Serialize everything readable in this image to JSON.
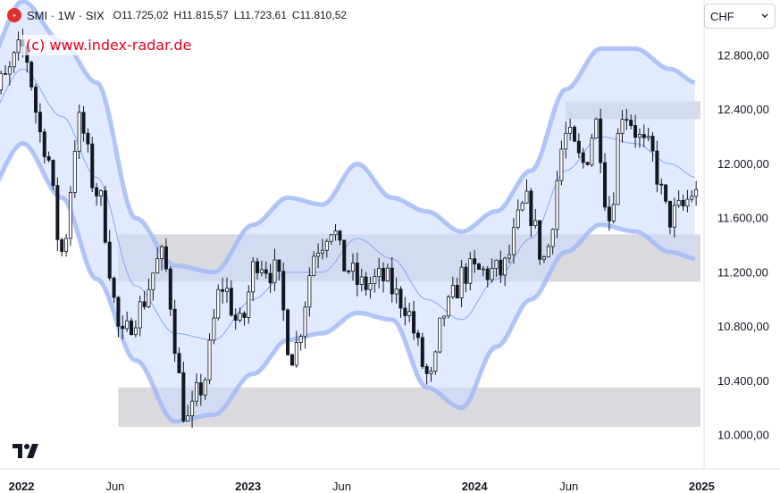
{
  "header": {
    "symbol_icon": "swiss-index-logo",
    "symbol": "SMI · 1W · SIX",
    "open_label": "O",
    "open": "11.725,02",
    "high_label": "H",
    "high": "11.815,57",
    "low_label": "L",
    "low": "11.723,61",
    "close_label": "C",
    "close": "11.810,52"
  },
  "watermark": "(c) www.index-radar.de",
  "currency": {
    "value": "CHF",
    "icon": "chevron-down-icon"
  },
  "colors": {
    "up": "#ffffff",
    "down": "#131722",
    "band_fill": "#cfdcff",
    "band_edge": "#9fb8f5",
    "band_line": "#8aa6ee",
    "zone": "#d3d4d8",
    "axis_text": "#131722"
  },
  "chart_data": {
    "type": "candlestick",
    "title": "",
    "x_ticks": [
      "2022",
      "Jun",
      "2023",
      "Jun",
      "2024",
      "Jun",
      "2025"
    ],
    "y_ticks": [
      "12.800,00",
      "12.400,00",
      "12.000,00",
      "11.600,00",
      "11.200,00",
      "10.800,00",
      "10.400,00",
      "10.000,00"
    ],
    "y_tick_values": [
      12800,
      12400,
      12000,
      11600,
      11200,
      10800,
      10400,
      10000
    ],
    "ylim": [
      9900,
      13200
    ],
    "date_range": [
      "2021-11-01",
      "2024-12-23"
    ],
    "x_tick_dates": [
      "2022-01-01",
      "2022-06-01",
      "2023-01-01",
      "2023-06-01",
      "2024-01-01",
      "2024-06-01",
      "2025-01-01"
    ],
    "last_close": 11810.52,
    "close_anchors": [
      [
        "2021-11-01",
        12300
      ],
      [
        "2021-12-01",
        12600
      ],
      [
        "2022-01-03",
        12850
      ],
      [
        "2022-02-07",
        12150
      ],
      [
        "2022-03-07",
        11350
      ],
      [
        "2022-04-04",
        12300
      ],
      [
        "2022-05-02",
        11800
      ],
      [
        "2022-06-13",
        10700
      ],
      [
        "2022-07-04",
        10900
      ],
      [
        "2022-08-15",
        11300
      ],
      [
        "2022-09-26",
        10100
      ],
      [
        "2022-10-17",
        10350
      ],
      [
        "2022-11-21",
        11100
      ],
      [
        "2022-12-19",
        10800
      ],
      [
        "2023-01-16",
        11300
      ],
      [
        "2023-02-13",
        11200
      ],
      [
        "2023-03-13",
        10600
      ],
      [
        "2023-04-24",
        11400
      ],
      [
        "2023-05-15",
        11550
      ],
      [
        "2023-06-05",
        11250
      ],
      [
        "2023-07-03",
        11100
      ],
      [
        "2023-08-07",
        11150
      ],
      [
        "2023-09-04",
        11000
      ],
      [
        "2023-10-23",
        10400
      ],
      [
        "2023-11-13",
        10900
      ],
      [
        "2023-12-18",
        11200
      ],
      [
        "2024-02-12",
        11200
      ],
      [
        "2024-03-25",
        11700
      ],
      [
        "2024-04-22",
        11300
      ],
      [
        "2024-05-27",
        12200
      ],
      [
        "2024-06-24",
        12000
      ],
      [
        "2024-07-15",
        12300
      ],
      [
        "2024-08-05",
        11600
      ],
      [
        "2024-08-26",
        12400
      ],
      [
        "2024-10-07",
        12100
      ],
      [
        "2024-11-11",
        11600
      ],
      [
        "2024-11-25",
        11650
      ],
      [
        "2024-12-23",
        11810.52
      ]
    ],
    "bollinger_bands": {
      "upper": [
        [
          "2021-11-01",
          12700
        ],
        [
          "2022-01-03",
          13200
        ],
        [
          "2022-03-07",
          12900
        ],
        [
          "2022-05-02",
          12600
        ],
        [
          "2022-07-04",
          11600
        ],
        [
          "2022-09-05",
          11250
        ],
        [
          "2022-11-07",
          11200
        ],
        [
          "2023-01-09",
          11550
        ],
        [
          "2023-03-06",
          11750
        ],
        [
          "2023-05-01",
          11700
        ],
        [
          "2023-06-26",
          12000
        ],
        [
          "2023-08-21",
          11750
        ],
        [
          "2023-10-16",
          11650
        ],
        [
          "2023-12-11",
          11500
        ],
        [
          "2024-02-05",
          11650
        ],
        [
          "2024-04-01",
          11950
        ],
        [
          "2024-05-27",
          12550
        ],
        [
          "2024-07-22",
          12850
        ],
        [
          "2024-09-16",
          12850
        ],
        [
          "2024-11-11",
          12700
        ],
        [
          "2024-12-23",
          12600
        ]
      ],
      "middle": [
        [
          "2021-11-01",
          12300
        ],
        [
          "2022-01-03",
          12700
        ],
        [
          "2022-03-07",
          12350
        ],
        [
          "2022-05-02",
          11900
        ],
        [
          "2022-07-04",
          11100
        ],
        [
          "2022-09-05",
          10750
        ],
        [
          "2022-11-07",
          10700
        ],
        [
          "2023-01-09",
          11000
        ],
        [
          "2023-03-06",
          11200
        ],
        [
          "2023-05-01",
          11200
        ],
        [
          "2023-06-26",
          11450
        ],
        [
          "2023-08-21",
          11300
        ],
        [
          "2023-10-16",
          11000
        ],
        [
          "2023-12-11",
          10850
        ],
        [
          "2024-02-05",
          11150
        ],
        [
          "2024-04-01",
          11450
        ],
        [
          "2024-05-27",
          11950
        ],
        [
          "2024-07-22",
          12200
        ],
        [
          "2024-09-16",
          12150
        ],
        [
          "2024-11-11",
          12000
        ],
        [
          "2024-12-23",
          11900
        ]
      ],
      "lower": [
        [
          "2021-11-01",
          11750
        ],
        [
          "2022-01-03",
          12150
        ],
        [
          "2022-03-07",
          11750
        ],
        [
          "2022-05-02",
          11150
        ],
        [
          "2022-07-04",
          10550
        ],
        [
          "2022-09-05",
          10100
        ],
        [
          "2022-11-07",
          10150
        ],
        [
          "2023-01-09",
          10450
        ],
        [
          "2023-03-06",
          10700
        ],
        [
          "2023-05-01",
          10750
        ],
        [
          "2023-06-26",
          10900
        ],
        [
          "2023-08-21",
          10850
        ],
        [
          "2023-10-16",
          10350
        ],
        [
          "2023-12-11",
          10200
        ],
        [
          "2024-02-05",
          10650
        ],
        [
          "2024-04-01",
          11000
        ],
        [
          "2024-05-27",
          11350
        ],
        [
          "2024-07-22",
          11550
        ],
        [
          "2024-09-16",
          11500
        ],
        [
          "2024-11-11",
          11350
        ],
        [
          "2024-12-23",
          11300
        ]
      ]
    },
    "zones": [
      {
        "from": "2022-06-06",
        "to": "2024-12-30",
        "low": 11130,
        "high": 11480
      },
      {
        "from": "2022-06-06",
        "to": "2024-12-30",
        "low": 10060,
        "high": 10350
      },
      {
        "from": "2024-05-27",
        "to": "2024-12-30",
        "low": 12330,
        "high": 12460
      }
    ]
  }
}
